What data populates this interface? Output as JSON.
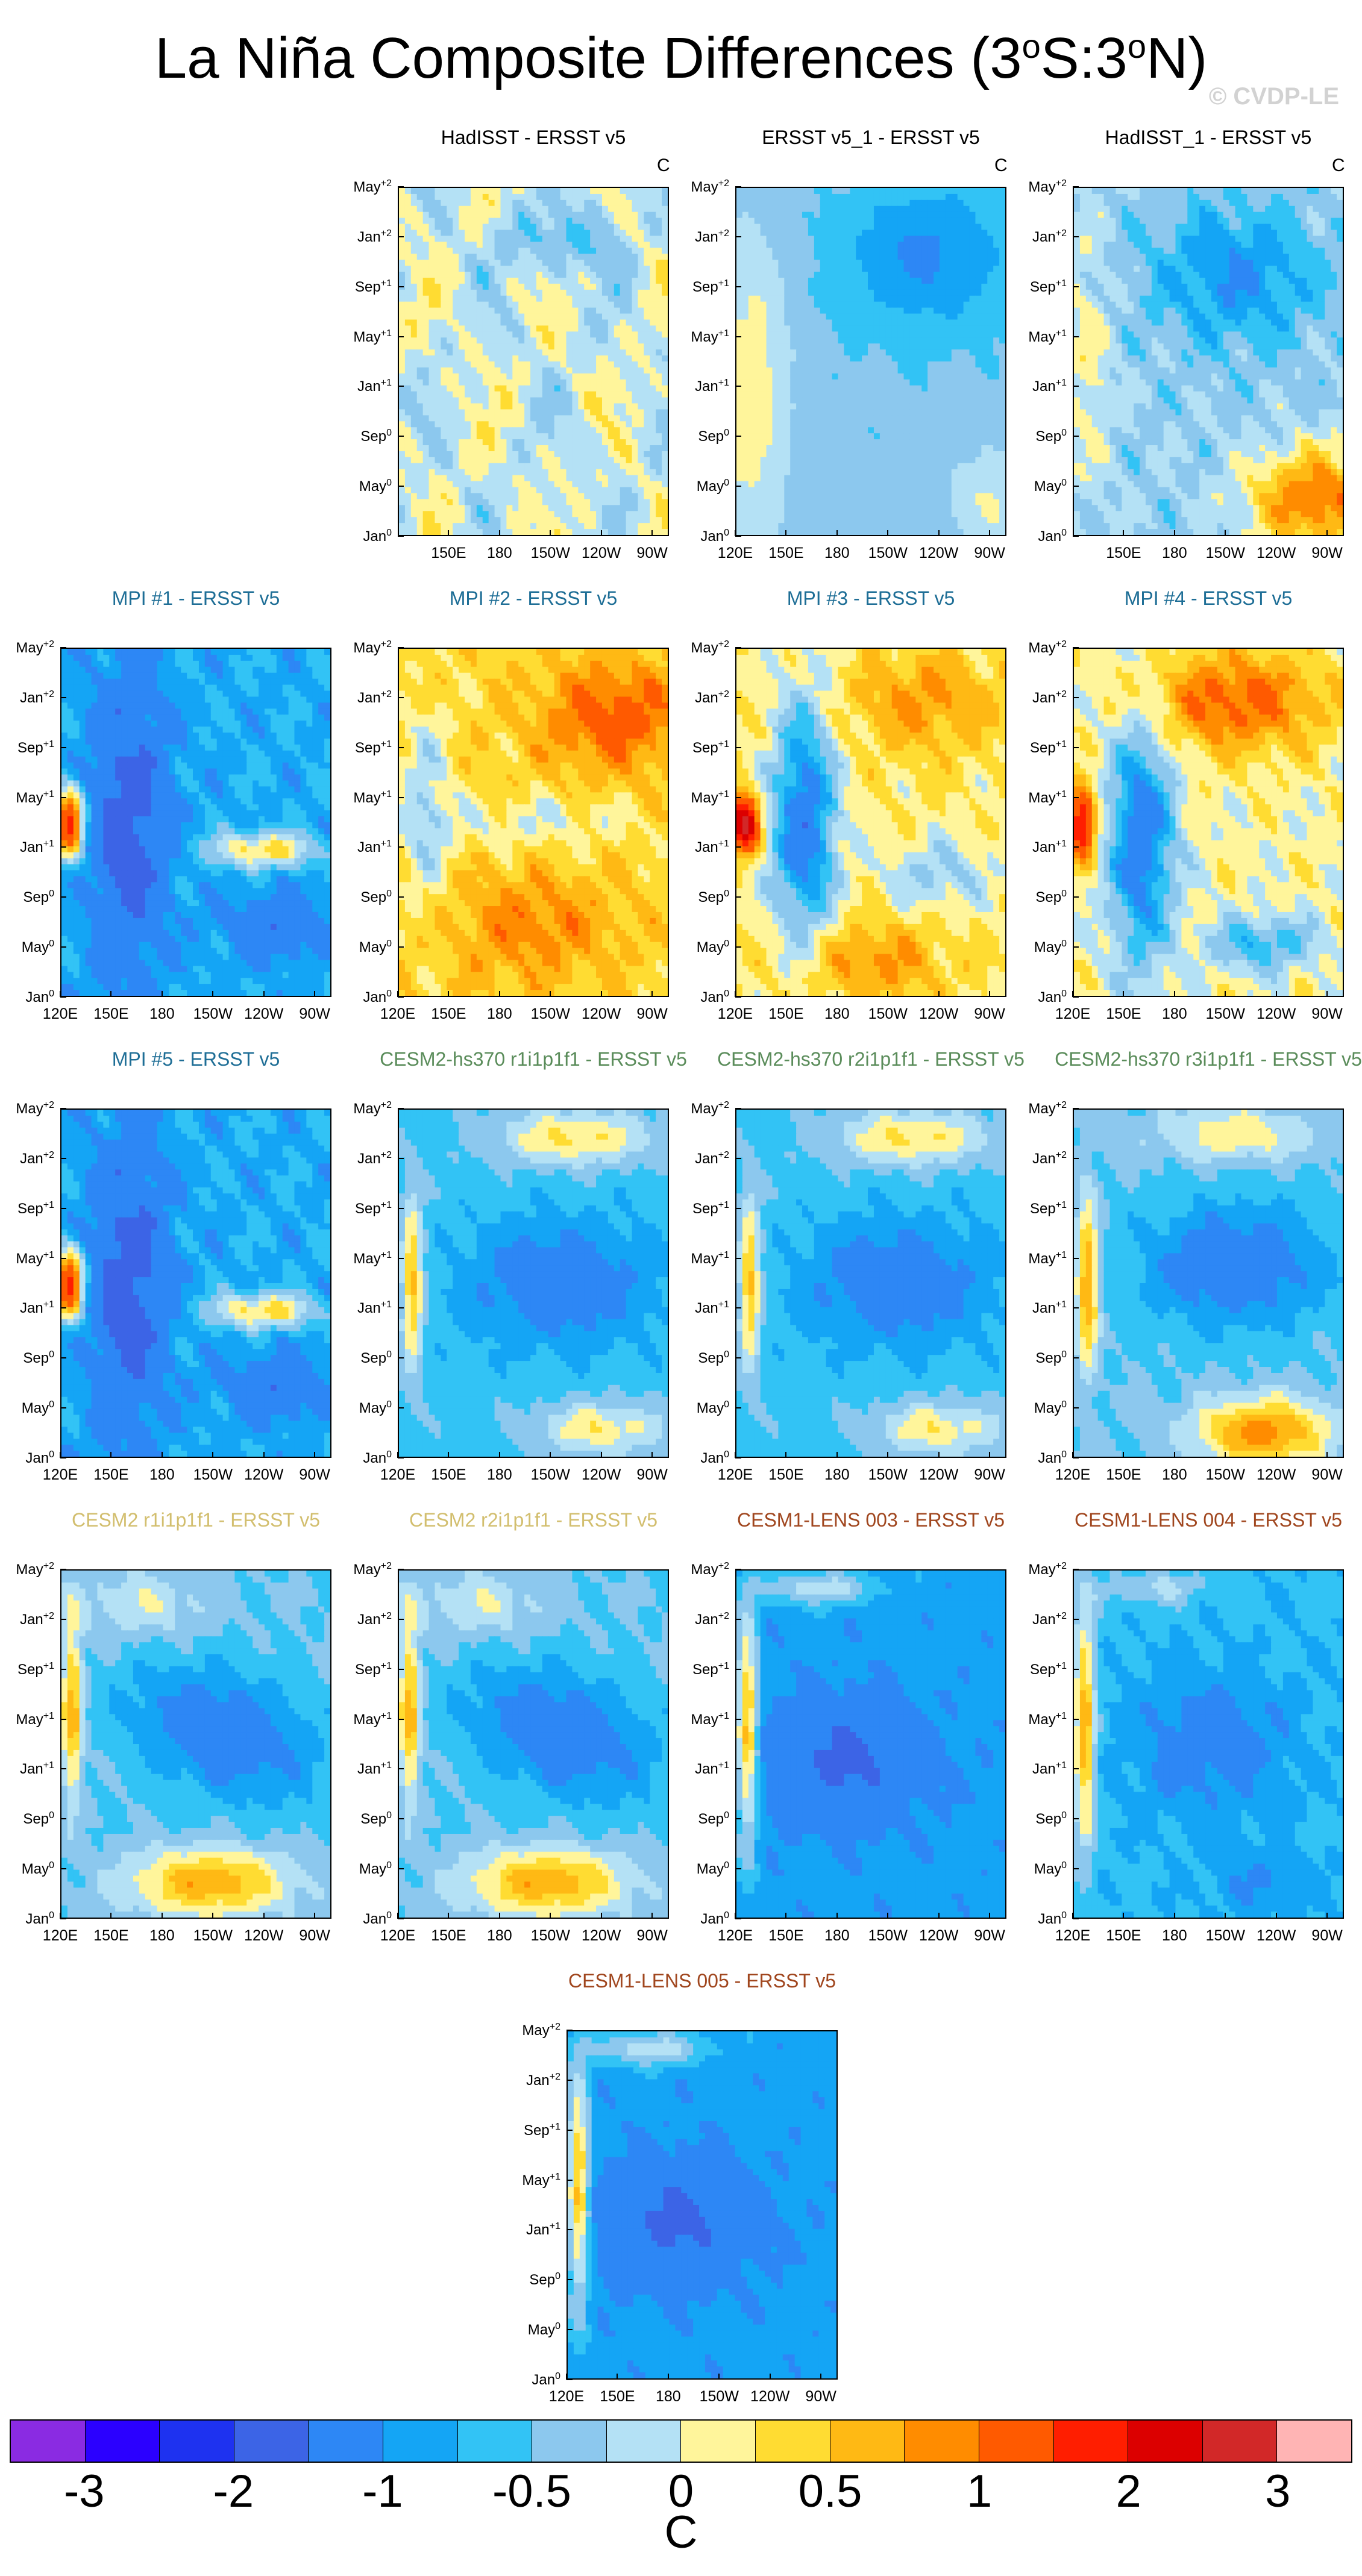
{
  "page": {
    "title_prefix": "La Niña Composite Differences (3",
    "title_sup1": "o",
    "title_mid": "S:3",
    "title_sup2": "o",
    "title_suffix": "N)",
    "copyright": "© CVDP-LE"
  },
  "chart_data": {
    "type": "heatmap",
    "unit": "C",
    "x_tick_labels": [
      "120E",
      "150E",
      "180",
      "150W",
      "120W",
      "90W"
    ],
    "y_tick_labels": [
      {
        "base": "Jan",
        "sup": "0"
      },
      {
        "base": "May",
        "sup": "0"
      },
      {
        "base": "Sep",
        "sup": "0"
      },
      {
        "base": "Jan",
        "sup": "+1"
      },
      {
        "base": "May",
        "sup": "+1"
      },
      {
        "base": "Sep",
        "sup": "+1"
      },
      {
        "base": "Jan",
        "sup": "+2"
      },
      {
        "base": "May",
        "sup": "+2"
      }
    ],
    "contour_levels": [
      "-3",
      "-2",
      "-1",
      "-0.5",
      "0",
      "0.5",
      "1",
      "2",
      "3"
    ],
    "colorbar_colors": [
      "#8a2be2",
      "#2b00ff",
      "#1e32f0",
      "#3c64e6",
      "#2d87f5",
      "#14a5f5",
      "#32c3f5",
      "#8cc8ee",
      "#b4e1f5",
      "#fff59b",
      "#ffdc32",
      "#ffb914",
      "#ff8c00",
      "#ff5a00",
      "#ff1e00",
      "#dc0000",
      "#d22828",
      "#ffb4b4"
    ],
    "panels": [
      {
        "id": "hadisst",
        "title": "HadISST - ERSST v5",
        "title_color": "#000000",
        "show_unit": true,
        "first_xtick_shown": false,
        "pattern": "obs_weak"
      },
      {
        "id": "ersst-v5-1",
        "title": "ERSST v5_1 - ERSST v5",
        "title_color": "#000000",
        "show_unit": true,
        "first_xtick_shown": true,
        "pattern": "obs_cool"
      },
      {
        "id": "hadisst-1",
        "title": "HadISST_1 - ERSST v5",
        "title_color": "#000000",
        "show_unit": true,
        "first_xtick_shown": false,
        "pattern": "obs_warm_se"
      },
      {
        "id": "mpi-1",
        "title": "MPI #1 - ERSST v5",
        "title_color": "#1e6e96",
        "show_unit": false,
        "first_xtick_shown": true,
        "pattern": "mpi_cold"
      },
      {
        "id": "mpi-2",
        "title": "MPI #2 - ERSST v5",
        "title_color": "#1e6e96",
        "show_unit": false,
        "first_xtick_shown": true,
        "pattern": "mpi_warm"
      },
      {
        "id": "mpi-3",
        "title": "MPI #3 - ERSST v5",
        "title_color": "#1e6e96",
        "show_unit": false,
        "first_xtick_shown": true,
        "pattern": "mpi_mixed"
      },
      {
        "id": "mpi-4",
        "title": "MPI #4 - ERSST v5",
        "title_color": "#1e6e96",
        "show_unit": false,
        "first_xtick_shown": true,
        "pattern": "mpi_warmtop"
      },
      {
        "id": "mpi-5",
        "title": "MPI #5 - ERSST v5",
        "title_color": "#1e6e96",
        "show_unit": false,
        "first_xtick_shown": true,
        "pattern": "mpi_cold"
      },
      {
        "id": "cesm2-hs370-r1",
        "title": "CESM2-hs370 r1i1p1f1 - ERSST v5",
        "title_color": "#5a8c5a",
        "show_unit": false,
        "first_xtick_shown": true,
        "pattern": "cesm_band"
      },
      {
        "id": "cesm2-hs370-r2",
        "title": "CESM2-hs370 r2i1p1f1 - ERSST v5",
        "title_color": "#5a8c5a",
        "show_unit": false,
        "first_xtick_shown": true,
        "pattern": "cesm_band"
      },
      {
        "id": "cesm2-hs370-r3",
        "title": "CESM2-hs370 r3i1p1f1 - ERSST v5",
        "title_color": "#5a8c5a",
        "show_unit": false,
        "first_xtick_shown": true,
        "pattern": "cesm_band_warm"
      },
      {
        "id": "cesm2-r1",
        "title": "CESM2 r1i1p1f1 - ERSST v5",
        "title_color": "#d2be6e",
        "show_unit": false,
        "first_xtick_shown": true,
        "pattern": "cesm2_tilt"
      },
      {
        "id": "cesm2-r2",
        "title": "CESM2 r2i1p1f1 - ERSST v5",
        "title_color": "#d2be6e",
        "show_unit": false,
        "first_xtick_shown": true,
        "pattern": "cesm2_tilt"
      },
      {
        "id": "cesm1-lens-003",
        "title": "CESM1-LENS 003 - ERSST v5",
        "title_color": "#a0461e",
        "show_unit": false,
        "first_xtick_shown": true,
        "pattern": "lens_cold"
      },
      {
        "id": "cesm1-lens-004",
        "title": "CESM1-LENS 004 - ERSST v5",
        "title_color": "#a0461e",
        "show_unit": false,
        "first_xtick_shown": true,
        "pattern": "lens_mid"
      },
      {
        "id": "cesm1-lens-005",
        "title": "CESM1-LENS 005 - ERSST v5",
        "title_color": "#a0461e",
        "show_unit": false,
        "first_xtick_shown": true,
        "pattern": "lens_cold"
      }
    ]
  }
}
